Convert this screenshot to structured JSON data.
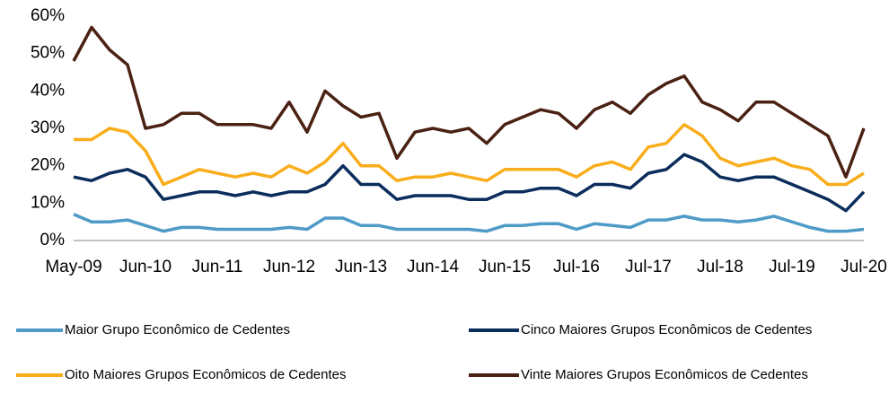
{
  "chart_data": {
    "type": "line",
    "categories": [
      "May-09",
      null,
      null,
      null,
      "Jun-10",
      null,
      null,
      null,
      "Jun-11",
      null,
      null,
      null,
      "Jun-12",
      null,
      null,
      null,
      "Jun-13",
      null,
      null,
      null,
      "Jun-14",
      null,
      null,
      null,
      "Jun-15",
      null,
      null,
      null,
      "Jul-16",
      null,
      null,
      null,
      "Jul-17",
      null,
      null,
      null,
      "Jul-18",
      null,
      null,
      null,
      "Jul-19",
      null,
      null,
      null,
      "Jul-20"
    ],
    "series": [
      {
        "name": "Maior Grupo Econômico de Cedentes",
        "color": "#4f9bc7",
        "values": [
          7,
          5,
          5,
          5.5,
          4,
          2.5,
          3.5,
          3.5,
          3,
          3,
          3,
          3,
          3.5,
          3,
          6,
          6,
          4,
          4,
          3,
          3,
          3,
          3,
          3,
          2.5,
          4,
          4,
          4.5,
          4.5,
          3,
          4.5,
          4,
          3.5,
          5.5,
          5.5,
          6.5,
          5.5,
          5.5,
          5,
          5.5,
          6.5,
          5,
          3.5,
          2.5,
          2.5,
          3
        ]
      },
      {
        "name": "Cinco Maiores Grupos Econômicos de Cedentes",
        "color": "#0b2d5c",
        "values": [
          17,
          16,
          18,
          19,
          17,
          11,
          12,
          13,
          13,
          12,
          13,
          12,
          13,
          13,
          15,
          20,
          15,
          15,
          11,
          12,
          12,
          12,
          11,
          11,
          13,
          13,
          14,
          14,
          12,
          15,
          15,
          14,
          18,
          19,
          23,
          21,
          17,
          16,
          17,
          17,
          15,
          13,
          11,
          8,
          13
        ]
      },
      {
        "name": "Oito Maiores Grupos Econômicos de Cedentes",
        "color": "#f9ad1b",
        "values": [
          27,
          27,
          30,
          29,
          24,
          15,
          17,
          19,
          18,
          17,
          18,
          17,
          20,
          18,
          21,
          26,
          20,
          20,
          16,
          17,
          17,
          18,
          17,
          16,
          19,
          19,
          19,
          19,
          17,
          20,
          21,
          19,
          25,
          26,
          31,
          28,
          22,
          20,
          21,
          22,
          20,
          19,
          15,
          15,
          18
        ]
      },
      {
        "name": "Vinte Maiores Grupos Econômicos de Cedentes",
        "color": "#4a2112",
        "values": [
          48,
          57,
          51,
          47,
          30,
          31,
          34,
          34,
          31,
          31,
          31,
          30,
          37,
          29,
          40,
          36,
          33,
          34,
          22,
          29,
          30,
          29,
          30,
          26,
          31,
          33,
          35,
          34,
          30,
          35,
          37,
          34,
          39,
          42,
          44,
          37,
          35,
          32,
          37,
          37,
          34,
          31,
          28,
          17,
          30
        ]
      }
    ],
    "ylim": [
      0,
      60
    ],
    "yticks": [
      {
        "value": 0,
        "label": "0%"
      },
      {
        "value": 10,
        "label": "10%"
      },
      {
        "value": 20,
        "label": "20%"
      },
      {
        "value": 30,
        "label": "30%"
      },
      {
        "value": 40,
        "label": "40%"
      },
      {
        "value": 50,
        "label": "50%"
      },
      {
        "value": 60,
        "label": "60%"
      }
    ],
    "grid": false
  }
}
